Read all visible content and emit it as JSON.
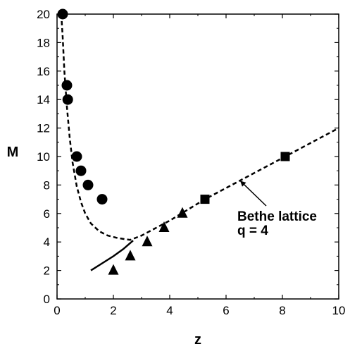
{
  "chart_data": {
    "type": "scatter",
    "xlabel": "z",
    "ylabel": "M",
    "xlim": [
      0,
      10
    ],
    "ylim": [
      0,
      20
    ],
    "xticks": [
      0,
      2,
      4,
      6,
      8,
      10
    ],
    "yticks": [
      0,
      2,
      4,
      6,
      8,
      10,
      12,
      14,
      16,
      18,
      20
    ],
    "grid": false,
    "series": [
      {
        "marker": "circle",
        "points": [
          [
            0.2,
            20
          ],
          [
            0.35,
            15
          ],
          [
            0.38,
            14
          ],
          [
            0.7,
            10
          ],
          [
            0.85,
            9
          ],
          [
            1.1,
            8
          ],
          [
            1.6,
            7
          ]
        ]
      },
      {
        "marker": "triangle",
        "points": [
          [
            2.0,
            2
          ],
          [
            2.6,
            3
          ],
          [
            3.2,
            4
          ],
          [
            3.8,
            5
          ],
          [
            4.45,
            6
          ]
        ]
      },
      {
        "marker": "square",
        "points": [
          [
            5.25,
            7
          ],
          [
            8.1,
            10
          ]
        ]
      },
      {
        "style": "dashed",
        "points": [
          [
            0.15,
            20
          ],
          [
            0.2,
            18.4
          ],
          [
            0.26,
            16.0
          ],
          [
            0.35,
            13.5
          ],
          [
            0.45,
            11.3
          ],
          [
            0.55,
            9.6
          ],
          [
            0.7,
            7.9
          ],
          [
            0.85,
            6.8
          ],
          [
            1.0,
            6.0
          ],
          [
            1.2,
            5.3
          ],
          [
            1.5,
            4.75
          ],
          [
            1.8,
            4.45
          ],
          [
            2.1,
            4.3
          ],
          [
            2.4,
            4.2
          ],
          [
            2.6,
            4.15
          ],
          [
            3.0,
            4.45
          ],
          [
            4.0,
            5.5
          ],
          [
            5.25,
            7.0
          ],
          [
            8.1,
            10.0
          ],
          [
            10.0,
            12.0
          ]
        ]
      },
      {
        "style": "solid",
        "points": [
          [
            1.2,
            2.0
          ],
          [
            1.6,
            2.5
          ],
          [
            2.0,
            3.0
          ],
          [
            2.35,
            3.5
          ],
          [
            2.7,
            4.1
          ]
        ]
      }
    ],
    "annotation": {
      "lines": [
        "Bethe lattice",
        "q = 4"
      ],
      "target": [
        6.5,
        8.4
      ]
    }
  }
}
